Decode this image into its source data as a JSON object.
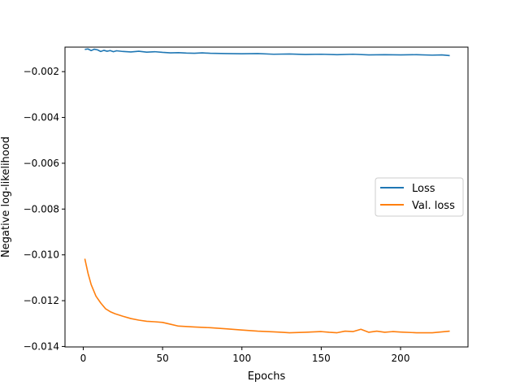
{
  "chart_data": {
    "type": "line",
    "title": "",
    "xlabel": "Epochs",
    "ylabel": "Negative log-likelihood",
    "xlim": [
      -11.5,
      242.5
    ],
    "ylim": [
      -0.01402,
      -0.00093
    ],
    "xticks": [
      0,
      50,
      100,
      150,
      200
    ],
    "xtick_labels": [
      "0",
      "50",
      "100",
      "150",
      "200"
    ],
    "yticks": [
      -0.002,
      -0.004,
      -0.006,
      -0.008,
      -0.01,
      -0.012,
      -0.014
    ],
    "ytick_labels": [
      "−0.002",
      "−0.004",
      "−0.006",
      "−0.008",
      "−0.010",
      "−0.012",
      "−0.014"
    ],
    "grid": false,
    "legend_position": "center-right",
    "series": [
      {
        "name": "Loss",
        "color": "#1f77b4",
        "x": [
          1,
          3,
          5,
          7,
          9,
          11,
          13,
          15,
          17,
          19,
          21,
          25,
          30,
          35,
          40,
          45,
          50,
          55,
          60,
          65,
          70,
          75,
          80,
          90,
          100,
          110,
          120,
          130,
          140,
          150,
          160,
          170,
          180,
          190,
          200,
          210,
          220,
          226,
          231
        ],
        "y": [
          -0.00103,
          -0.00101,
          -0.00108,
          -0.00102,
          -0.00105,
          -0.00112,
          -0.00107,
          -0.00111,
          -0.00108,
          -0.00113,
          -0.00109,
          -0.00112,
          -0.00114,
          -0.00111,
          -0.00115,
          -0.00113,
          -0.00116,
          -0.00118,
          -0.00117,
          -0.00119,
          -0.0012,
          -0.00118,
          -0.0012,
          -0.00121,
          -0.00122,
          -0.00121,
          -0.00124,
          -0.00123,
          -0.00125,
          -0.00124,
          -0.00126,
          -0.00124,
          -0.00127,
          -0.00126,
          -0.00127,
          -0.00126,
          -0.00128,
          -0.00127,
          -0.0013
        ]
      },
      {
        "name": "Val. loss",
        "color": "#ff7f0e",
        "x": [
          1,
          3,
          5,
          8,
          11,
          14,
          17,
          20,
          25,
          30,
          35,
          40,
          45,
          50,
          55,
          60,
          70,
          80,
          90,
          100,
          110,
          120,
          125,
          130,
          140,
          150,
          155,
          160,
          165,
          170,
          175,
          180,
          185,
          190,
          195,
          200,
          210,
          220,
          231
        ],
        "y": [
          -0.01017,
          -0.0108,
          -0.0113,
          -0.0118,
          -0.0121,
          -0.01235,
          -0.01248,
          -0.01257,
          -0.01268,
          -0.01278,
          -0.01285,
          -0.0129,
          -0.01292,
          -0.01295,
          -0.01303,
          -0.01311,
          -0.01315,
          -0.01318,
          -0.01323,
          -0.01328,
          -0.01333,
          -0.01336,
          -0.01338,
          -0.0134,
          -0.01338,
          -0.01335,
          -0.01338,
          -0.0134,
          -0.01333,
          -0.01335,
          -0.01325,
          -0.01338,
          -0.01333,
          -0.01338,
          -0.01335,
          -0.01337,
          -0.0134,
          -0.0134,
          -0.01333
        ]
      }
    ]
  }
}
